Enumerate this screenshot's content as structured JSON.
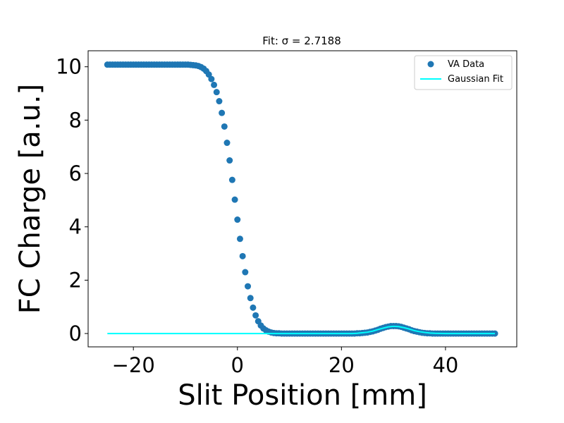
{
  "chart_data": {
    "type": "scatter",
    "title": "Fit: σ = 2.7188",
    "xlabel": "Slit Position [mm]",
    "ylabel": "FC Charge [a.u.]",
    "xlim": [
      -28.7,
      53.7
    ],
    "ylim": [
      -0.5,
      10.6
    ],
    "xticks": [
      -20,
      0,
      20,
      40
    ],
    "xtick_labels": [
      "−20",
      "0",
      "20",
      "40"
    ],
    "yticks": [
      0,
      2,
      4,
      6,
      8,
      10
    ],
    "ytick_labels": [
      "0",
      "2",
      "4",
      "6",
      "8",
      "10"
    ],
    "grid": false,
    "legend_position": "top-right",
    "colors": {
      "data": "#1f77b4",
      "fit": "#00ffff"
    },
    "series": [
      {
        "name": "VA Data",
        "kind": "scatter",
        "x": [
          -25,
          -24.5,
          -24,
          -23.5,
          -23,
          -22.5,
          -22,
          -21.5,
          -21,
          -20.5,
          -20,
          -19.5,
          -19,
          -18.5,
          -18,
          -17.5,
          -17,
          -16.5,
          -16,
          -15.5,
          -15,
          -14.5,
          -14,
          -13.5,
          -13,
          -12.5,
          -12,
          -11.5,
          -11,
          -10.5,
          -10,
          -9.5,
          -9,
          -8.5,
          -8,
          -7.5,
          -7,
          -6.5,
          -6,
          -5.5,
          -5,
          -4.5,
          -4,
          -3.5,
          -3,
          -2.5,
          -2,
          -1.5,
          -1,
          -0.5,
          0,
          0.5,
          1,
          1.5,
          2,
          2.5,
          3,
          3.5,
          4,
          4.5,
          5,
          5.5,
          6,
          6.5,
          7,
          7.5,
          8,
          8.5,
          9,
          9.5,
          10,
          10.5,
          11,
          11.5,
          12,
          12.5,
          13,
          13.5,
          14,
          14.5,
          15,
          15.5,
          16,
          16.5,
          17,
          17.5,
          18,
          18.5,
          19,
          19.5,
          20,
          20.5,
          21,
          21.5,
          22,
          22.5,
          23,
          23.5,
          24,
          24.5,
          25,
          25.5,
          26,
          26.5,
          27,
          27.5,
          28,
          28.5,
          29,
          29.5,
          30,
          30.5,
          31,
          31.5,
          32,
          32.5,
          33,
          33.5,
          34,
          34.5,
          35,
          35.5,
          36,
          36.5,
          37,
          37.5,
          38,
          38.5,
          39,
          39.5,
          40,
          40.5,
          41,
          41.5,
          42,
          42.5,
          43,
          43.5,
          44,
          44.5,
          45,
          45.5,
          46,
          46.5,
          47,
          47.5,
          48,
          48.5,
          49,
          49.5
        ],
        "y": [
          10.08,
          10.08,
          10.08,
          10.08,
          10.08,
          10.08,
          10.08,
          10.08,
          10.08,
          10.08,
          10.08,
          10.08,
          10.08,
          10.08,
          10.08,
          10.08,
          10.08,
          10.08,
          10.08,
          10.08,
          10.08,
          10.08,
          10.08,
          10.08,
          10.08,
          10.08,
          10.08,
          10.08,
          10.08,
          10.08,
          10.08,
          10.08,
          10.07,
          10.06,
          10.05,
          10.03,
          9.99,
          9.93,
          9.84,
          9.71,
          9.54,
          9.32,
          9.05,
          8.71,
          8.27,
          7.76,
          7.15,
          6.49,
          5.76,
          5.02,
          4.27,
          3.55,
          2.9,
          2.3,
          1.77,
          1.33,
          0.97,
          0.68,
          0.46,
          0.3,
          0.19,
          0.12,
          0.07,
          0.04,
          0.02,
          0.01,
          0.01,
          0,
          0,
          0,
          0,
          0,
          0,
          0,
          0,
          0,
          0,
          0,
          0,
          0,
          0,
          0,
          0,
          0,
          0,
          0,
          0,
          0,
          0,
          0,
          0,
          0,
          0,
          0,
          0,
          0,
          0.01,
          0.01,
          0.02,
          0.03,
          0.04,
          0.06,
          0.08,
          0.11,
          0.14,
          0.18,
          0.21,
          0.24,
          0.26,
          0.28,
          0.28,
          0.28,
          0.27,
          0.25,
          0.22,
          0.19,
          0.16,
          0.12,
          0.09,
          0.07,
          0.05,
          0.03,
          0.02,
          0.01,
          0.01,
          0,
          0,
          0,
          0,
          0,
          0,
          0,
          0,
          0,
          0,
          0,
          0,
          0,
          0,
          0,
          0,
          0,
          0,
          0,
          0,
          0,
          0,
          0,
          0,
          0
        ]
      },
      {
        "name": "Gaussian Fit",
        "kind": "line",
        "x": [
          -25,
          -20,
          -15,
          -10,
          -5,
          0,
          5,
          10,
          15,
          20,
          22,
          23,
          24,
          25,
          26,
          27,
          28,
          29,
          30,
          31,
          32,
          33,
          34,
          35,
          36,
          37,
          38,
          40,
          45,
          49.5
        ],
        "y": [
          0,
          0,
          0,
          0,
          0,
          0,
          0,
          0,
          0,
          0,
          0,
          0.01,
          0.03,
          0.05,
          0.09,
          0.15,
          0.2,
          0.25,
          0.27,
          0.26,
          0.22,
          0.17,
          0.11,
          0.07,
          0.04,
          0.02,
          0.01,
          0,
          0,
          0
        ]
      }
    ]
  }
}
